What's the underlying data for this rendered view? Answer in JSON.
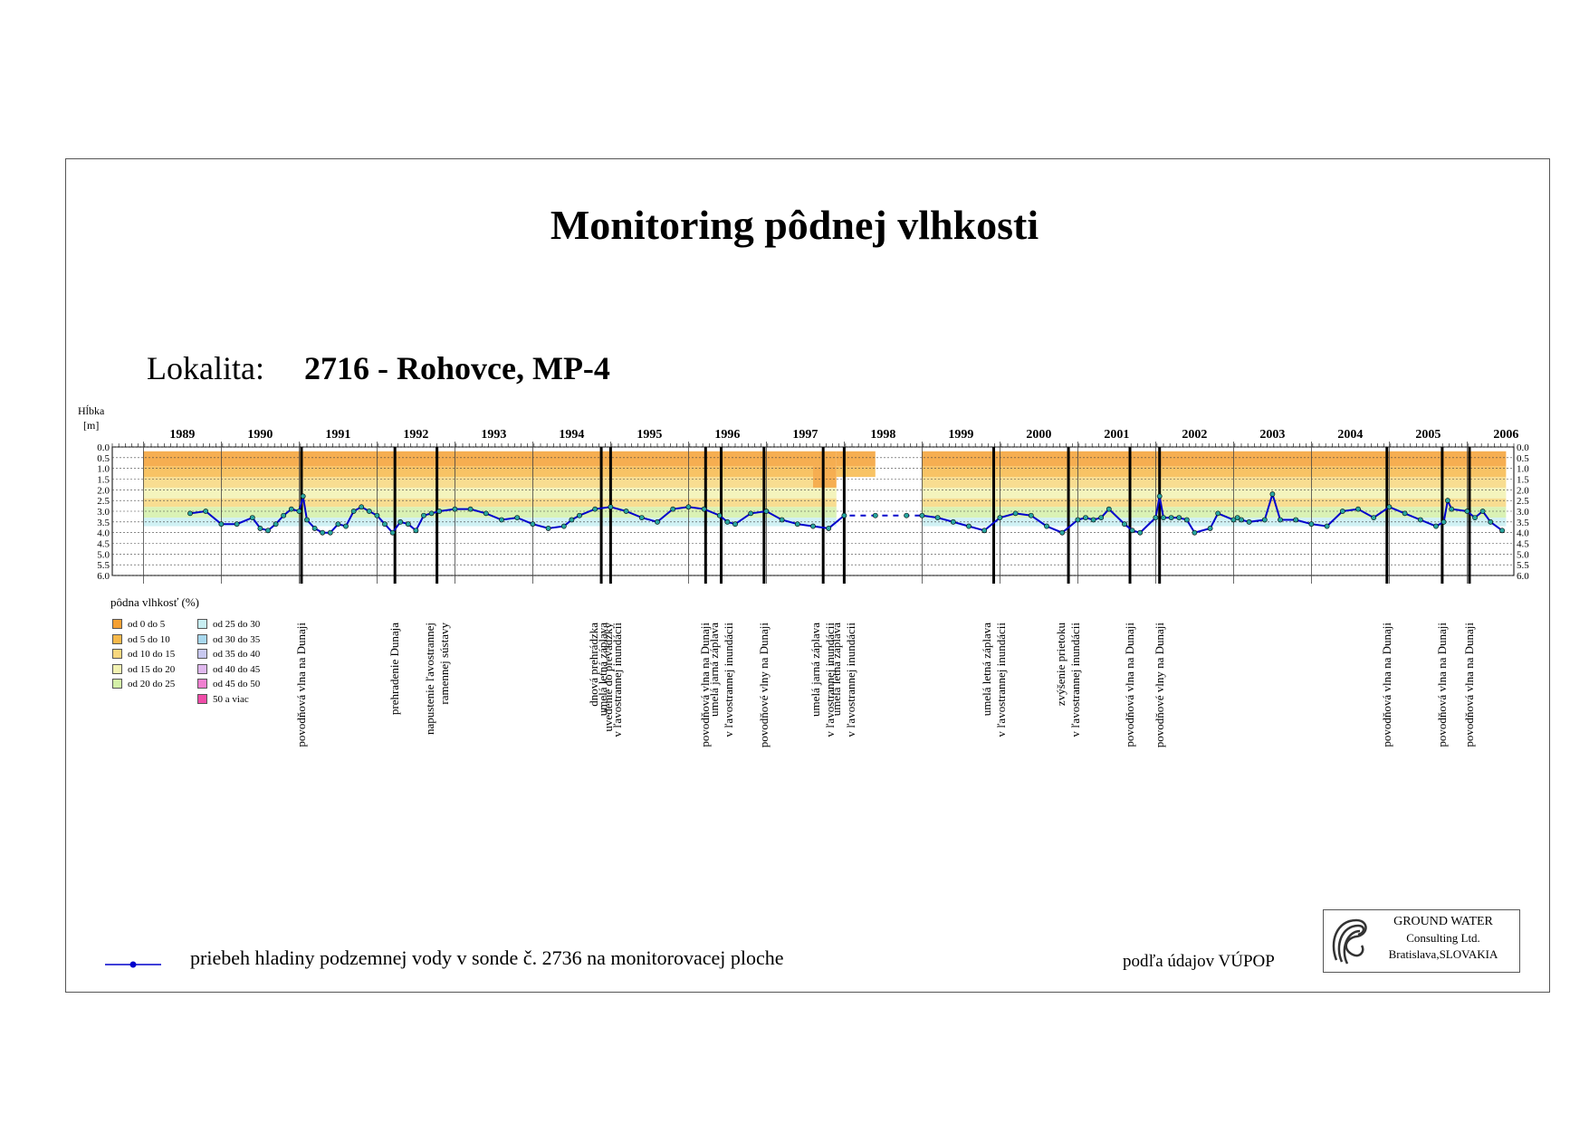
{
  "title": "Monitoring pôdnej vlhkosti",
  "location": {
    "label": "Lokalita:",
    "value": "2716 - Rohovce, MP-4"
  },
  "colors": {
    "gw_line": "#0000cc",
    "gw_marker_fill": "#2aa6a0",
    "moisture_classes": [
      "#f5a033",
      "#f7b94a",
      "#f7d77e",
      "#f2f2b2",
      "#d4f0a8",
      "#c8eef2",
      "#a8d8ee",
      "#c8c8f0",
      "#e0b8ee",
      "#f080d0",
      "#f04ca8"
    ]
  },
  "legend": {
    "title": "pôdna vlhkosť (%)",
    "items": [
      "od 0 do 5",
      "od 5 do 10",
      "od 10 do 15",
      "od 15 do 20",
      "od 20 do 25",
      "od 25 do 30",
      "od 30 do 35",
      "od 35 do 40",
      "od 40 do 45",
      "od 45 do 50",
      "50 a viac"
    ]
  },
  "events": [
    {
      "label": "povodňová vlna na Dunaji",
      "x": 1991.03
    },
    {
      "label": "prehradenie Dunaja",
      "x": 1992.23
    },
    {
      "label": "napustenie ľavostrannej\nramennej sústavy",
      "x": 1992.77
    },
    {
      "label": "dnová prehrádzka\nuvedenie do prevádzky",
      "x": 1994.88
    },
    {
      "label": "umelá letná záplava\nv ľavostrannej inundácii",
      "x": 1995.0
    },
    {
      "label": "povodňová vlna na Dunaji",
      "x": 1996.22
    },
    {
      "label": "umelá jarná záplava\nv ľavostrannej inundácii",
      "x": 1996.42
    },
    {
      "label": "povodňové vlny na Dunaji",
      "x": 1996.97
    },
    {
      "label": "umelá jarná záplava\nv ľavostrannej inundácii",
      "x": 1997.73
    },
    {
      "label": "umelá letná záplava\nv ľavostrannej inundácii",
      "x": 1998.0
    },
    {
      "label": "umelá letná záplava\nv ľavostrannej inundácii",
      "x": 1999.92
    },
    {
      "label": "zvýšenie prietoku\nv ľavostrannej inundácii",
      "x": 2000.88
    },
    {
      "label": "povodňová vlna na Dunaji",
      "x": 2001.67
    },
    {
      "label": "povodňové vlny na Dunaji",
      "x": 2002.05
    },
    {
      "label": "povodňová vlna na Dunaji",
      "x": 2004.97
    },
    {
      "label": "povodňová vlna na Dunaji",
      "x": 2005.68
    },
    {
      "label": "povodňová vlna na Dunaji",
      "x": 2006.03
    }
  ],
  "gw_legend_text": "priebeh hladiny podzemnej vody v sonde č. 2736 na monitorovacej ploche",
  "source": "podľa údajov VÚPOP",
  "logo": {
    "line1": "GROUND WATER",
    "line2": "Consulting Ltd.",
    "line3": "Bratislava,SLOVAKIA"
  },
  "chart_data": {
    "type": "line",
    "ylabel": "Hĺbka\n[m]",
    "xlim": [
      1988.6,
      2006.6
    ],
    "ylim": [
      0.0,
      6.0
    ],
    "y_inverted": true,
    "year_ticks": [
      "1989",
      "1990",
      "1991",
      "1992",
      "1993",
      "1994",
      "1995",
      "1996",
      "1997",
      "1998",
      "1999",
      "2000",
      "2001",
      "2002",
      "2003",
      "2004",
      "2005",
      "2006"
    ],
    "y_ticks": [
      "0.0",
      "0.5",
      "1.0",
      "1.5",
      "2.0",
      "2.5",
      "3.0",
      "3.5",
      "4.0",
      "4.5",
      "5.0",
      "5.5",
      "6.0"
    ],
    "moisture_periods": [
      {
        "from": 1989.0,
        "to": 1990.0
      },
      {
        "from": 1990.0,
        "to": 1997.6
      },
      {
        "from": 1997.6,
        "to": 1997.9
      },
      {
        "from": 1997.9,
        "to": 1998.4
      },
      {
        "from": 1999.0,
        "to": 2006.5
      }
    ],
    "moisture_layers": [
      {
        "depth": [
          0.2,
          0.9
        ],
        "class": 0
      },
      {
        "depth": [
          0.9,
          1.4
        ],
        "class": 1
      },
      {
        "depth": [
          1.4,
          1.9
        ],
        "class": 2
      },
      {
        "depth": [
          1.9,
          2.4
        ],
        "class": 3
      },
      {
        "depth": [
          2.4,
          2.8
        ],
        "class": 2
      },
      {
        "depth": [
          2.8,
          3.3
        ],
        "class": 4
      },
      {
        "depth": [
          3.3,
          3.7
        ],
        "class": 5
      }
    ],
    "series": [
      {
        "name": "priebeh hladiny podzemnej vody v sonde č. 2736 na monitorovacej ploche",
        "x": [
          1989.6,
          1989.8,
          1990.0,
          1990.2,
          1990.4,
          1990.5,
          1990.6,
          1990.7,
          1990.8,
          1990.9,
          1991.0,
          1991.05,
          1991.1,
          1991.2,
          1991.3,
          1991.4,
          1991.5,
          1991.6,
          1991.7,
          1991.8,
          1991.9,
          1992.0,
          1992.1,
          1992.2,
          1992.3,
          1992.4,
          1992.5,
          1992.6,
          1992.7,
          1992.8,
          1993.0,
          1993.2,
          1993.4,
          1993.6,
          1993.8,
          1994.0,
          1994.2,
          1994.4,
          1994.5,
          1994.6,
          1994.8,
          1995.0,
          1995.2,
          1995.4,
          1995.6,
          1995.8,
          1996.0,
          1996.2,
          1996.4,
          1996.5,
          1996.6,
          1996.8,
          1997.0,
          1997.2,
          1997.4,
          1997.6,
          1997.8,
          1998.0,
          1998.4,
          1998.8,
          1999.0,
          1999.2,
          1999.4,
          1999.6,
          1999.8,
          2000.0,
          2000.2,
          2000.4,
          2000.6,
          2000.8,
          2001.0,
          2001.1,
          2001.2,
          2001.3,
          2001.4,
          2001.6,
          2001.7,
          2001.8,
          2002.0,
          2002.05,
          2002.1,
          2002.2,
          2002.3,
          2002.4,
          2002.5,
          2002.7,
          2002.8,
          2003.0,
          2003.05,
          2003.1,
          2003.2,
          2003.4,
          2003.5,
          2003.6,
          2003.8,
          2004.0,
          2004.2,
          2004.4,
          2004.6,
          2004.8,
          2005.0,
          2005.2,
          2005.4,
          2005.6,
          2005.7,
          2005.75,
          2005.8,
          2006.0,
          2006.1,
          2006.2,
          2006.3,
          2006.45
        ],
        "y": [
          3.1,
          3.0,
          3.6,
          3.6,
          3.3,
          3.8,
          3.9,
          3.6,
          3.2,
          2.9,
          3.0,
          2.3,
          3.4,
          3.8,
          4.0,
          4.0,
          3.6,
          3.7,
          3.0,
          2.8,
          3.0,
          3.2,
          3.6,
          4.0,
          3.5,
          3.6,
          3.9,
          3.2,
          3.1,
          3.0,
          2.9,
          2.9,
          3.1,
          3.4,
          3.3,
          3.6,
          3.8,
          3.7,
          3.4,
          3.2,
          2.9,
          2.8,
          3.0,
          3.3,
          3.5,
          2.9,
          2.8,
          2.9,
          3.2,
          3.5,
          3.6,
          3.1,
          3.0,
          3.4,
          3.6,
          3.7,
          3.8,
          3.2,
          3.2,
          3.2,
          3.2,
          3.3,
          3.5,
          3.7,
          3.9,
          3.3,
          3.1,
          3.2,
          3.7,
          4.0,
          3.4,
          3.3,
          3.4,
          3.3,
          2.9,
          3.6,
          3.9,
          4.0,
          3.3,
          2.3,
          3.3,
          3.3,
          3.3,
          3.4,
          4.0,
          3.8,
          3.1,
          3.4,
          3.3,
          3.4,
          3.5,
          3.4,
          2.2,
          3.4,
          3.4,
          3.6,
          3.7,
          3.0,
          2.9,
          3.3,
          2.8,
          3.1,
          3.4,
          3.7,
          3.5,
          2.5,
          2.9,
          3.0,
          3.3,
          3.0,
          3.5,
          3.9
        ]
      }
    ]
  }
}
